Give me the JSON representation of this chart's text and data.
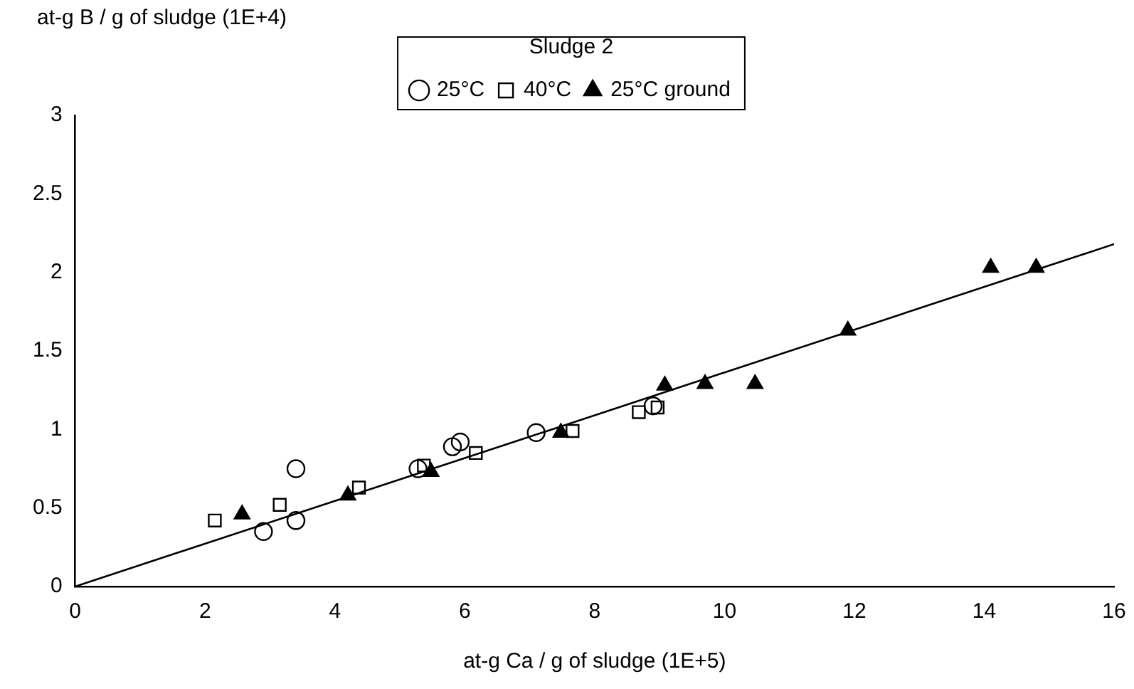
{
  "chart_data": {
    "type": "scatter",
    "xlabel": "at-g Ca / g of sludge (1E+5)",
    "ylabel": "at-g B / g of sludge (1E+4)",
    "legend_title": "Sludge 2",
    "legend": "top",
    "grid": false,
    "xlim": [
      0,
      16
    ],
    "xticks": [
      0,
      2,
      4,
      6,
      8,
      10,
      12,
      14,
      16
    ],
    "ylim": [
      0,
      3
    ],
    "yticks": [
      0,
      0.5,
      1,
      1.5,
      2,
      2.5,
      3
    ],
    "series": [
      {
        "name": "25°C",
        "color": "#000000",
        "marker": "circle",
        "x": [
          2.9,
          3.4,
          3.4,
          5.28,
          5.81,
          5.93,
          7.1,
          8.9
        ],
        "values": [
          0.35,
          0.42,
          0.75,
          0.75,
          0.89,
          0.92,
          0.98,
          1.15
        ]
      },
      {
        "name": "40°C",
        "color": "#000000",
        "marker": "square",
        "x": [
          2.15,
          3.15,
          4.37,
          5.37,
          6.17,
          7.66,
          8.68,
          8.97
        ],
        "values": [
          0.42,
          0.52,
          0.63,
          0.77,
          0.85,
          0.99,
          1.11,
          1.14
        ]
      },
      {
        "name": "25°C ground",
        "color": "#000000",
        "marker": "triangle",
        "x": [
          2.57,
          4.2,
          5.48,
          7.48,
          9.08,
          9.7,
          10.47,
          11.9,
          14.1,
          14.8
        ],
        "values": [
          0.46,
          0.58,
          0.73,
          0.98,
          1.28,
          1.29,
          1.29,
          1.63,
          2.03,
          2.03
        ]
      },
      {
        "type": "line",
        "color": "#000000",
        "marker": "none",
        "x": [
          0,
          16
        ],
        "values": [
          0,
          2.18
        ]
      }
    ]
  }
}
